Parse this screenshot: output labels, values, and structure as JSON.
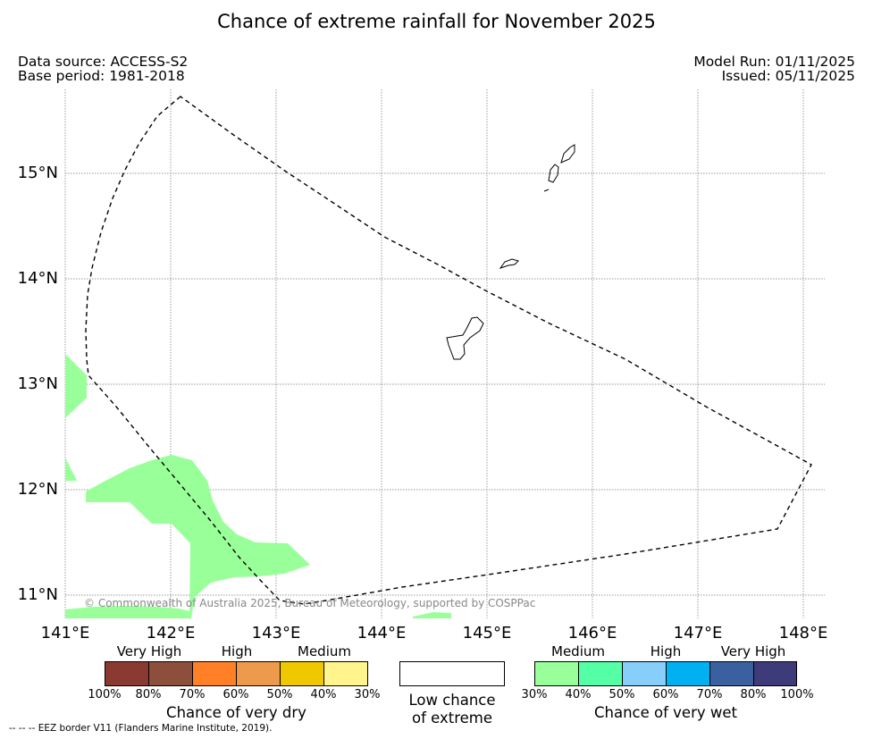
{
  "title": "Chance of extreme rainfall for November 2025",
  "data_source": "Data source: ACCESS-S2",
  "base_period": "Base period: 1981-2018",
  "model_run": "Model Run: 01/11/2025",
  "issued": "Issued: 05/11/2025",
  "latitude_labels": [
    "15°N",
    "14°N",
    "13°N",
    "12°N",
    "11°N"
  ],
  "longitude_labels": [
    "141°E",
    "142°E",
    "143°E",
    "144°E",
    "145°E",
    "146°E",
    "147°E",
    "148°E"
  ],
  "map": {
    "lon_range": [
      141,
      148.2
    ],
    "lat_range": [
      10.8,
      15.8
    ],
    "grid": true,
    "eez_border": "dashed black line",
    "wet_medium_color": "#99ff99"
  },
  "copyright": "© Commonwealth of Australia 2025, Bureau of Meteorology, supported by COSPPac",
  "eez_note": "--  --  -- EEZ border V11 (Flanders Marine Institute, 2019).",
  "legend": {
    "dry": {
      "title": "Chance of very dry",
      "categories": [
        "Very High",
        "High",
        "Medium"
      ],
      "ticks": [
        "100%",
        "80%",
        "70%",
        "60%",
        "50%",
        "40%",
        "30%"
      ],
      "colors": [
        "#8b3a32",
        "#8b4f3b",
        "#ff8026",
        "#ee9a4d",
        "#f0c800",
        "#fff58c"
      ]
    },
    "neutral": {
      "title_line1": "Low chance",
      "title_line2": "of extreme",
      "color": "#ffffff"
    },
    "wet": {
      "title": "Chance of very wet",
      "categories": [
        "Medium",
        "High",
        "Very High"
      ],
      "ticks": [
        "30%",
        "40%",
        "50%",
        "60%",
        "70%",
        "80%",
        "100%"
      ],
      "colors": [
        "#99ff99",
        "#55ffa6",
        "#87cefa",
        "#00b0f0",
        "#3a60a0",
        "#3e3b7a"
      ]
    }
  }
}
